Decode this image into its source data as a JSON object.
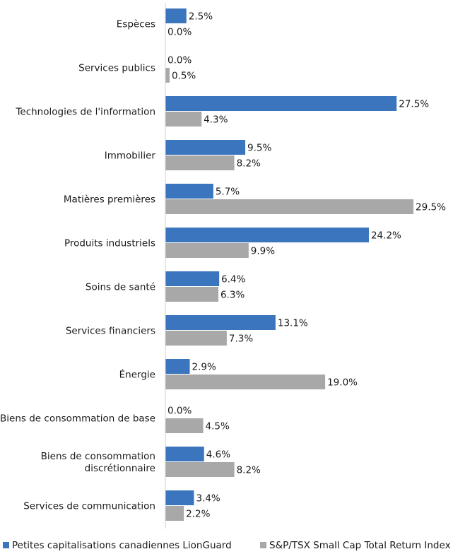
{
  "chart_data": {
    "type": "bar",
    "orientation": "horizontal",
    "categories": [
      [
        "Espèces"
      ],
      [
        "Services publics"
      ],
      [
        "Technologies de l'information"
      ],
      [
        "Immobilier"
      ],
      [
        "Matières premières"
      ],
      [
        "Produits industriels"
      ],
      [
        "Soins de santé"
      ],
      [
        "Services financiers"
      ],
      [
        "Énergie"
      ],
      [
        "Biens de consommation de base"
      ],
      [
        "Biens de consommation",
        "discrétionnaire"
      ],
      [
        "Services de communication"
      ]
    ],
    "series": [
      {
        "name": "Petites capitalisations canadiennes LionGuard",
        "color": "#3a75bd",
        "values": [
          2.5,
          0.0,
          27.5,
          9.5,
          5.7,
          24.2,
          6.4,
          13.1,
          2.9,
          0.0,
          4.6,
          3.4
        ],
        "labels": [
          "2.5%",
          "0.0%",
          "27.5%",
          "9.5%",
          "5.7%",
          "24.2%",
          "6.4%",
          "13.1%",
          "2.9%",
          "0.0%",
          "4.6%",
          "3.4%"
        ]
      },
      {
        "name": "S&P/TSX Small Cap Total Return Index",
        "color": "#a8a8a8",
        "values": [
          0.0,
          0.5,
          4.3,
          8.2,
          29.5,
          9.9,
          6.3,
          7.3,
          19.0,
          4.5,
          8.2,
          2.2
        ],
        "labels": [
          "0.0%",
          "0.5%",
          "4.3%",
          "8.2%",
          "29.5%",
          "9.9%",
          "6.3%",
          "7.3%",
          "19.0%",
          "4.5%",
          "8.2%",
          "2.2%"
        ]
      }
    ],
    "xlim": [
      0,
      30
    ],
    "grid": false,
    "legend_position": "bottom"
  }
}
